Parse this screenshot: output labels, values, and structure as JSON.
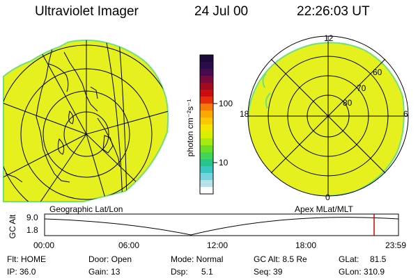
{
  "header": {
    "title": "Ultraviolet Imager",
    "date": "24 Jul 00",
    "time": "22:26:03 UT"
  },
  "colors": {
    "aurora_fill": "#e6f01e",
    "aurora_edge": "#6fe07a",
    "grid": "#000000"
  },
  "colorbar": {
    "label": "photon cm⁻²s⁻¹",
    "ticks": [
      "100",
      "10"
    ],
    "colors": [
      "#1b0a3a",
      "#2a0b4c",
      "#4a0a4e",
      "#78093a",
      "#a00b20",
      "#cc0d0d",
      "#e62e0a",
      "#f57a08",
      "#faa900",
      "#fac800",
      "#f2e600",
      "#d8f000",
      "#a5ea10",
      "#6cde28",
      "#42d45a",
      "#26c58e",
      "#3cc4c2",
      "#7ad2dc",
      "#b8e2ea",
      "#ffffff"
    ]
  },
  "left_panel": {
    "label": "Geographic Lat/Lon"
  },
  "right_panel": {
    "label": "Apex MLat/MLT",
    "mlt_labels": {
      "top": "12",
      "left": "18",
      "right": "6",
      "bottom": "0"
    },
    "lat_labels": [
      "60",
      "70",
      "80"
    ]
  },
  "altitude_plot": {
    "ylabel": "GC Alt",
    "yticks": [
      "9.0",
      "1.8"
    ],
    "xticks": [
      "00:00",
      "06:00",
      "12:00",
      "18:00",
      "23:59"
    ],
    "marker_color": "#cc0000"
  },
  "info": {
    "flt": "Flt: HOME",
    "ip": "IP: 36.0",
    "door": "Door: Open",
    "gain": "Gain: 13",
    "mode": "Mode: Normal",
    "dsp": "Dsp:",
    "dsp_val": "5.1",
    "gcalt": "GC Alt: 8.5 Re",
    "seq": "Seq: 39",
    "glat": "GLat:",
    "glat_val": "81.5",
    "glon": "GLon: 310.9"
  }
}
